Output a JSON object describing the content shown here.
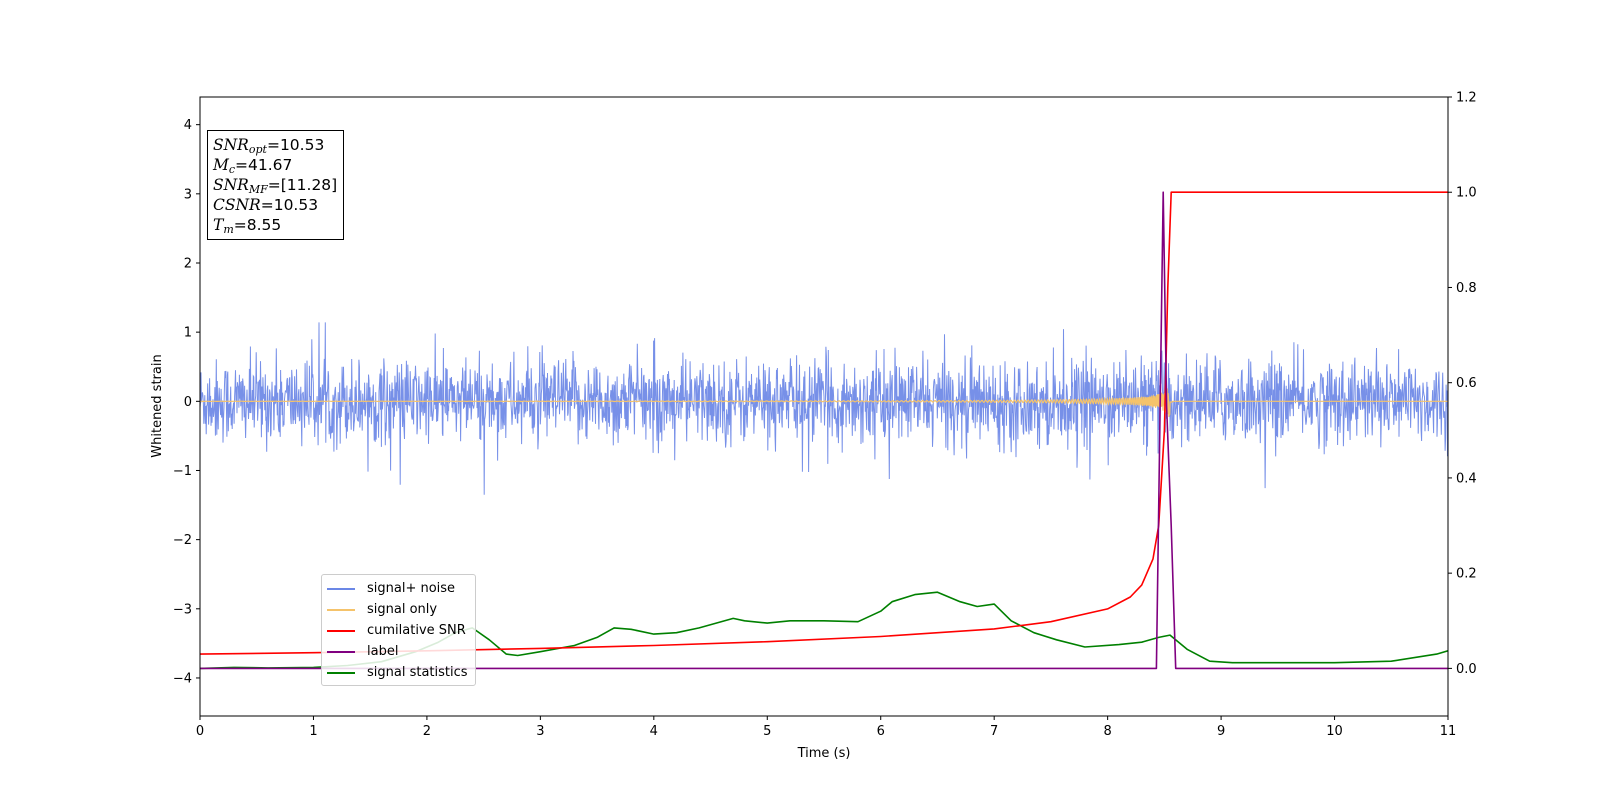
{
  "chart_data": {
    "type": "line",
    "xlabel": "Time (s)",
    "ylabel": "Whitened strain",
    "xlim": [
      0,
      11
    ],
    "ylim_left": [
      -4.55,
      4.4
    ],
    "ylim_right": [
      -0.1,
      1.2
    ],
    "x_ticks": [
      "0",
      "1",
      "2",
      "3",
      "4",
      "5",
      "6",
      "7",
      "8",
      "9",
      "10",
      "11"
    ],
    "y_ticks_left": [
      "−4",
      "−3",
      "−2",
      "−1",
      "0",
      "1",
      "2",
      "3",
      "4"
    ],
    "y_ticks_right": [
      "0.0",
      "0.2",
      "0.4",
      "0.6",
      "0.8",
      "1.0",
      "1.2"
    ],
    "annotations": {
      "snr_opt_label": "SNR",
      "snr_opt_sub": "opt",
      "snr_opt_value": "=10.53",
      "mc_label": "M",
      "mc_sub": "c",
      "mc_value": "=41.67",
      "snr_mf_label": "SNR",
      "snr_mf_sub": "MF",
      "snr_mf_value": "=[11.28]",
      "csnr_label": "CSNR",
      "csnr_value": "=10.53",
      "tm_label": "T",
      "tm_sub": "m",
      "tm_value": "=8.55"
    },
    "legend_position": "lower-left",
    "grid": false,
    "series": [
      {
        "name": "signal+ noise",
        "color": "#6b87e6",
        "axis": "left",
        "description_values": {
          "noise_amplitude_typical": 0.45,
          "noise_amplitude_max": 1.35
        },
        "x": [
          0,
          11
        ],
        "y": [
          0,
          0
        ]
      },
      {
        "name": "signal only",
        "color": "#f5c36b",
        "axis": "left",
        "chirp_merger_time": 8.55,
        "chirp_peak_amplitude": 0.3,
        "x": [
          0,
          11
        ],
        "y": [
          0,
          0
        ]
      },
      {
        "name": "cumilative SNR",
        "color": "#ff0000",
        "axis": "right",
        "x": [
          0,
          1,
          2,
          3,
          4,
          5,
          6,
          7,
          7.5,
          8,
          8.2,
          8.3,
          8.4,
          8.45,
          8.5,
          8.53,
          8.56,
          8.6,
          9,
          10,
          11
        ],
        "y": [
          0.03,
          0.033,
          0.037,
          0.042,
          0.048,
          0.056,
          0.067,
          0.083,
          0.098,
          0.125,
          0.15,
          0.175,
          0.23,
          0.3,
          0.5,
          0.8,
          1.0,
          1.0,
          1.0,
          1.0,
          1.0
        ]
      },
      {
        "name": "label",
        "color": "#800080",
        "axis": "right",
        "x": [
          0,
          8.43,
          8.49,
          8.52,
          8.56,
          8.6,
          11
        ],
        "y": [
          0,
          0,
          1.0,
          0.55,
          0.3,
          0,
          0
        ]
      },
      {
        "name": "signal statistics",
        "color": "#008000",
        "axis": "right",
        "x": [
          0,
          0.3,
          0.6,
          1.0,
          1.3,
          1.6,
          1.9,
          2.1,
          2.25,
          2.4,
          2.55,
          2.7,
          2.8,
          3.0,
          3.3,
          3.5,
          3.65,
          3.8,
          4.0,
          4.2,
          4.4,
          4.55,
          4.7,
          4.8,
          5.0,
          5.2,
          5.5,
          5.8,
          6.0,
          6.1,
          6.3,
          6.5,
          6.7,
          6.85,
          7.0,
          7.15,
          7.35,
          7.55,
          7.8,
          8.1,
          8.3,
          8.45,
          8.55,
          8.7,
          8.9,
          9.1,
          9.5,
          10.0,
          10.5,
          10.9,
          11.0
        ],
        "y": [
          0.0,
          0.002,
          0.001,
          0.002,
          0.006,
          0.014,
          0.035,
          0.055,
          0.075,
          0.085,
          0.06,
          0.03,
          0.027,
          0.035,
          0.048,
          0.065,
          0.085,
          0.082,
          0.072,
          0.075,
          0.085,
          0.095,
          0.105,
          0.1,
          0.095,
          0.1,
          0.1,
          0.098,
          0.12,
          0.14,
          0.155,
          0.16,
          0.14,
          0.13,
          0.135,
          0.1,
          0.075,
          0.06,
          0.045,
          0.05,
          0.055,
          0.065,
          0.07,
          0.04,
          0.015,
          0.012,
          0.012,
          0.012,
          0.015,
          0.03,
          0.037
        ]
      }
    ]
  }
}
